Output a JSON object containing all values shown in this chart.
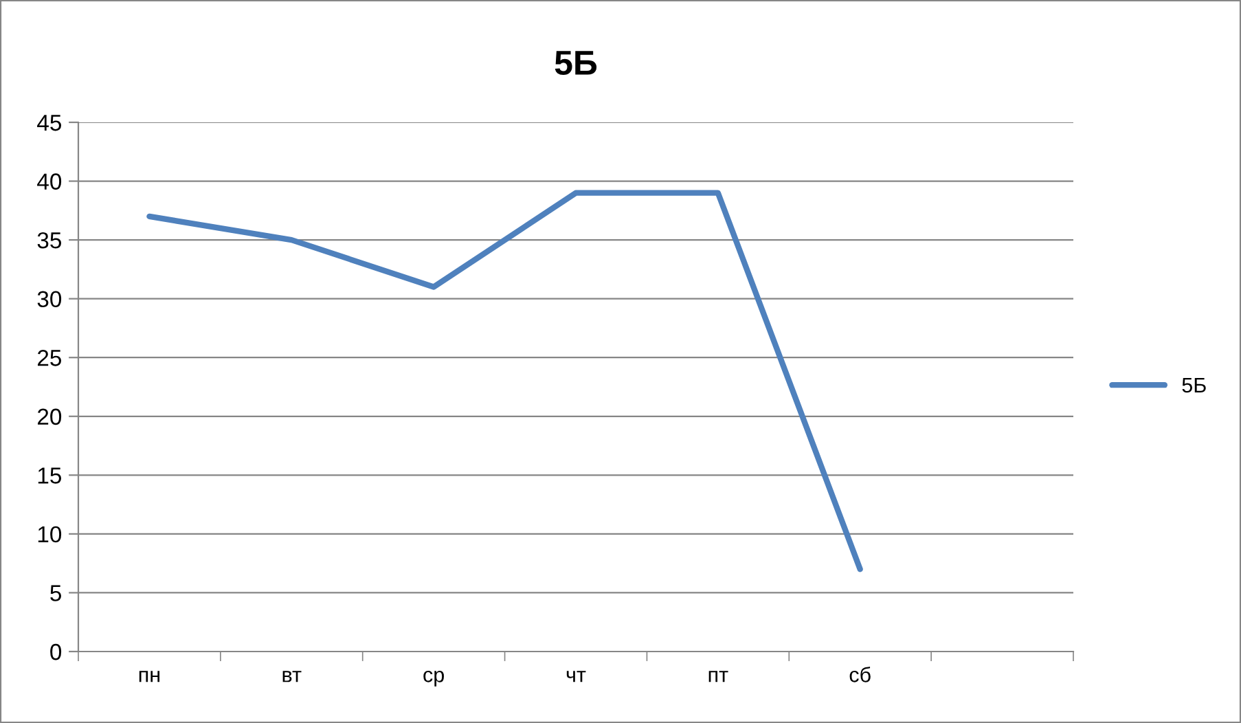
{
  "chart_data": {
    "type": "line",
    "title": "5Б",
    "categories": [
      "пн",
      "вт",
      "ср",
      "чт",
      "пт",
      "сб",
      null
    ],
    "series": [
      {
        "name": "5Б",
        "color": "#4f81bd",
        "values": [
          37,
          35,
          31,
          39,
          39,
          7,
          null
        ]
      }
    ],
    "ylim": [
      0,
      45
    ],
    "yticks": [
      0,
      5,
      10,
      15,
      20,
      25,
      30,
      35,
      40,
      45
    ],
    "grid": "y",
    "legend": "right",
    "marker": "none",
    "line_style": "solid"
  }
}
